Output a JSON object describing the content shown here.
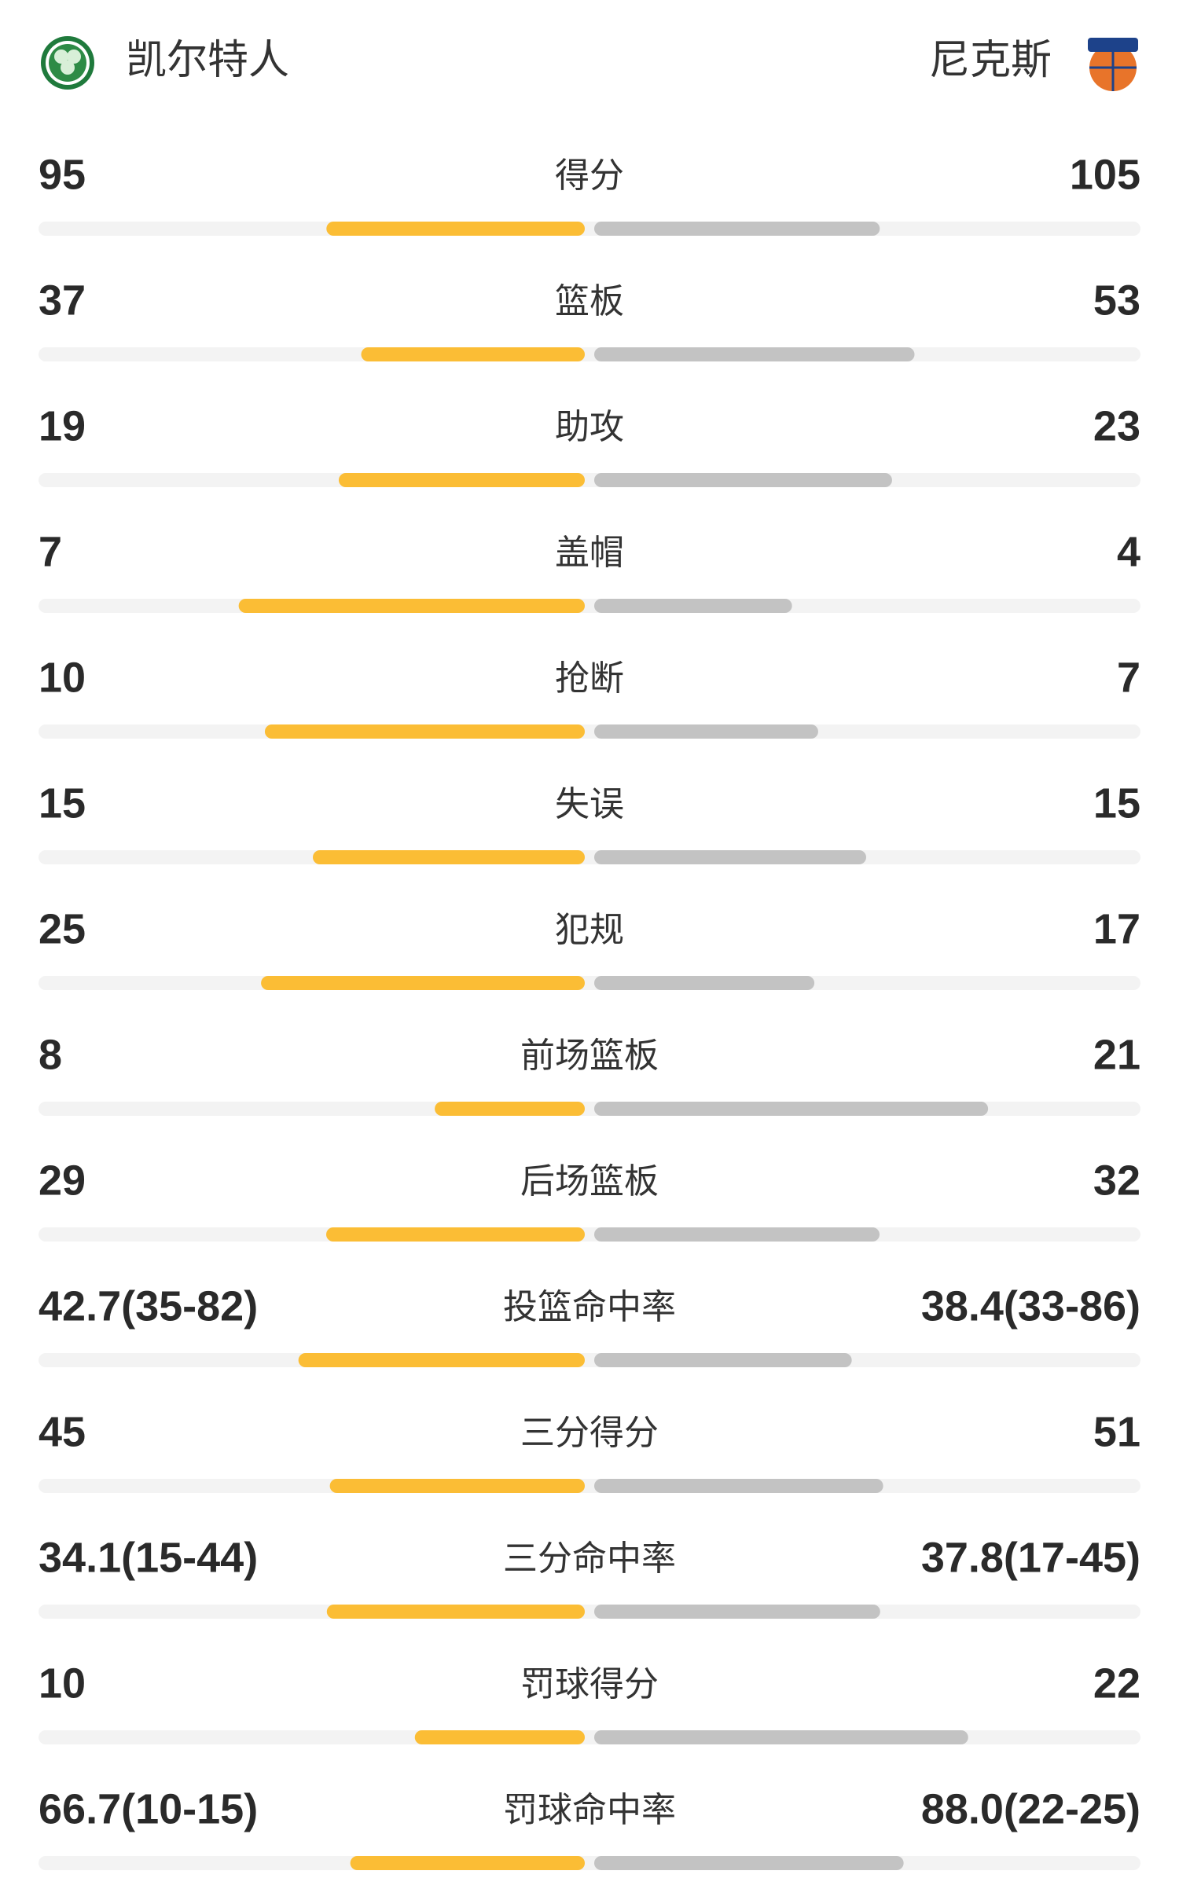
{
  "header": {
    "home": "凯尔特人",
    "away": "尼克斯"
  },
  "colors": {
    "home": "#fbbd35",
    "away": "#c3c3c3",
    "track": "#f3f3f3"
  },
  "stats": [
    {
      "label": "得分",
      "home": 95,
      "away": 105
    },
    {
      "label": "篮板",
      "home": 37,
      "away": 53
    },
    {
      "label": "助攻",
      "home": 19,
      "away": 23
    },
    {
      "label": "盖帽",
      "home": 7,
      "away": 4
    },
    {
      "label": "抢断",
      "home": 10,
      "away": 7
    },
    {
      "label": "失误",
      "home": 15,
      "away": 15
    },
    {
      "label": "犯规",
      "home": 25,
      "away": 17
    },
    {
      "label": "前场篮板",
      "home": 8,
      "away": 21
    },
    {
      "label": "后场篮板",
      "home": 29,
      "away": 32
    },
    {
      "label": "投篮命中率",
      "home": 42.7,
      "home_label": "42.7(35-82)",
      "away": 38.4,
      "away_label": "38.4(33-86)"
    },
    {
      "label": "三分得分",
      "home": 45,
      "away": 51
    },
    {
      "label": "三分命中率",
      "home": 34.1,
      "home_label": "34.1(15-44)",
      "away": 37.8,
      "away_label": "37.8(17-45)"
    },
    {
      "label": "罚球得分",
      "home": 10,
      "away": 22
    },
    {
      "label": "罚球命中率",
      "home": 66.7,
      "home_label": "66.7(10-15)",
      "away": 88.0,
      "away_label": "88.0(22-25)"
    }
  ]
}
